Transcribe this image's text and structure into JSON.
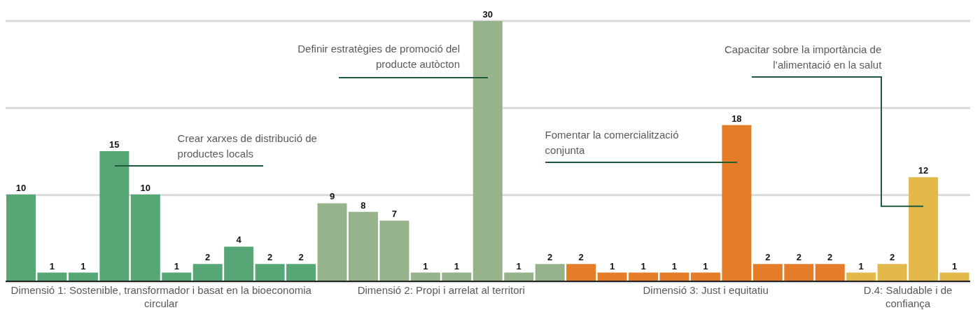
{
  "chart_data": {
    "type": "bar",
    "categories": [
      null,
      null,
      null,
      null,
      null,
      null,
      null,
      null,
      null,
      null,
      null,
      null,
      null,
      null,
      null,
      null,
      null,
      null,
      null,
      null,
      null,
      null,
      null,
      null,
      null,
      null,
      null,
      null,
      null,
      null,
      null
    ],
    "values": [
      10,
      1,
      1,
      15,
      10,
      1,
      2,
      4,
      2,
      2,
      9,
      8,
      7,
      1,
      1,
      30,
      1,
      2,
      2,
      1,
      1,
      1,
      1,
      18,
      2,
      2,
      2,
      1,
      2,
      12,
      1
    ],
    "colors": [
      "#57a776",
      "#57a776",
      "#57a776",
      "#57a776",
      "#57a776",
      "#57a776",
      "#57a776",
      "#57a776",
      "#57a776",
      "#57a776",
      "#97b38b",
      "#97b38b",
      "#97b38b",
      "#97b38b",
      "#97b38b",
      "#97b38b",
      "#97b38b",
      "#97b38b",
      "#e57c27",
      "#e57c27",
      "#e57c27",
      "#e57c27",
      "#e57c27",
      "#e57c27",
      "#e57c27",
      "#e57c27",
      "#e57c27",
      "#e4b94c",
      "#e4b94c",
      "#e4b94c",
      "#e4b94c"
    ],
    "ylim": [
      0,
      30
    ],
    "yticks": [
      0,
      10,
      20,
      30
    ],
    "grid": "y",
    "tick_labels": false,
    "data_labels": true,
    "annotations": [
      "Crear xarxes de distribució de productes locals",
      "Definir estratègies de promoció del producte autòcton",
      "Fomentar la comercialització conjunta",
      "Capacitar sobre la importància de l’alimentació en la salut",
      "Dimensió 1: Sostenible, transformador i basat en la bioeconomia circular",
      "Dimensió 2: Propi i arrelat al territori",
      "Dimensió 3: Just i equitatiu",
      "D.4: Saludable i de confiança"
    ]
  }
}
